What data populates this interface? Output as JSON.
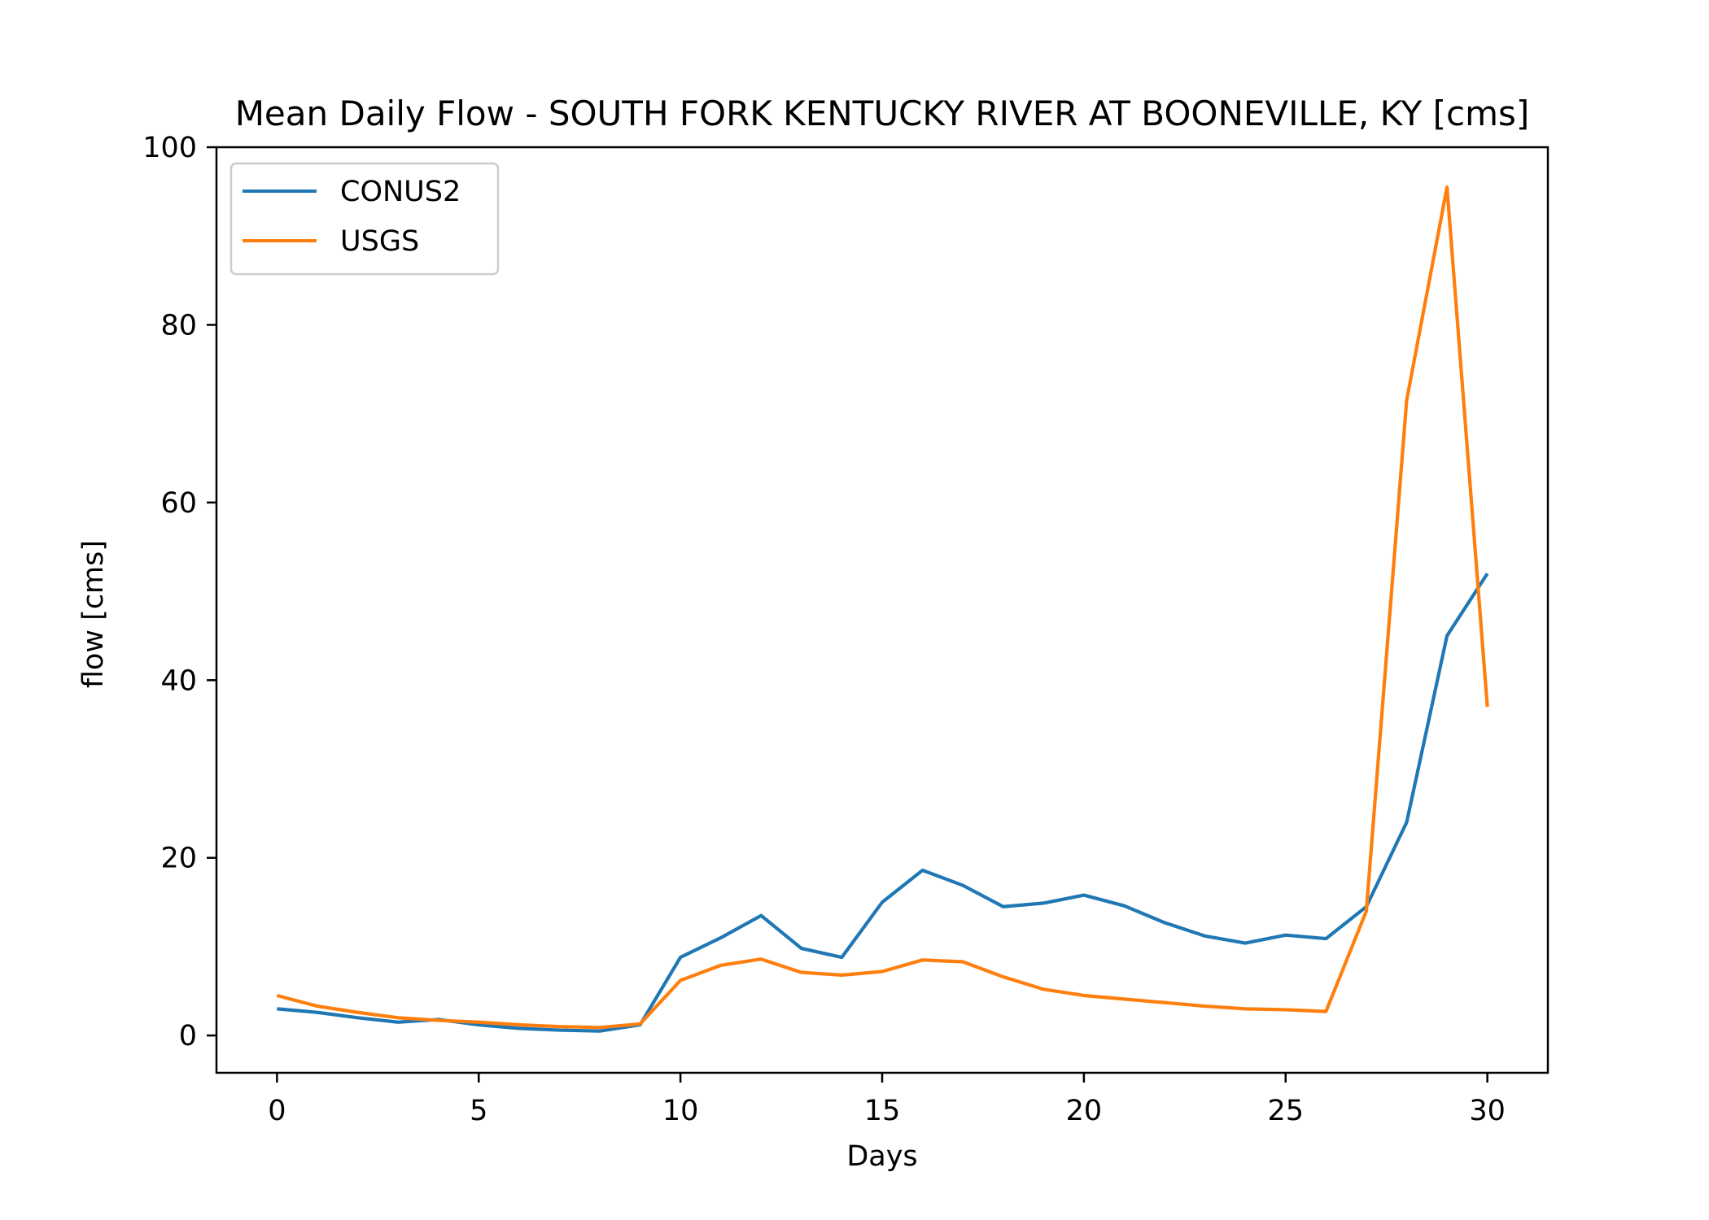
{
  "chart_data": {
    "type": "line",
    "title": "Mean Daily Flow - SOUTH FORK KENTUCKY RIVER AT BOONEVILLE, KY [cms]",
    "xlabel": "Days",
    "ylabel": "flow [cms]",
    "xlim": [
      -1.5,
      31.5
    ],
    "ylim": [
      -4.2,
      100
    ],
    "xticks": [
      0,
      5,
      10,
      15,
      20,
      25,
      30
    ],
    "yticks": [
      0,
      20,
      40,
      60,
      80,
      100
    ],
    "grid": false,
    "legend_position": "upper-left",
    "x": [
      0,
      1,
      2,
      3,
      4,
      5,
      6,
      7,
      8,
      9,
      10,
      11,
      12,
      13,
      14,
      15,
      16,
      17,
      18,
      19,
      20,
      21,
      22,
      23,
      24,
      25,
      26,
      27,
      28,
      29,
      30
    ],
    "series": [
      {
        "name": "CONUS2",
        "color": "#1f77b4",
        "values": [
          3.0,
          2.6,
          2.0,
          1.5,
          1.8,
          1.2,
          0.8,
          0.6,
          0.5,
          1.2,
          8.8,
          11.0,
          13.5,
          9.8,
          8.8,
          15.0,
          18.6,
          16.9,
          14.5,
          14.9,
          15.8,
          14.6,
          12.7,
          11.2,
          10.4,
          11.3,
          10.9,
          14.5,
          24.0,
          45.0,
          52.0
        ]
      },
      {
        "name": "USGS",
        "color": "#ff7f0e",
        "values": [
          4.5,
          3.3,
          2.6,
          2.0,
          1.7,
          1.5,
          1.2,
          1.0,
          0.9,
          1.3,
          6.2,
          7.9,
          8.6,
          7.1,
          6.8,
          7.2,
          8.5,
          8.3,
          6.6,
          5.2,
          4.5,
          4.1,
          3.7,
          3.3,
          3.0,
          2.9,
          2.7,
          14.0,
          71.5,
          95.5,
          37.0
        ]
      }
    ]
  }
}
